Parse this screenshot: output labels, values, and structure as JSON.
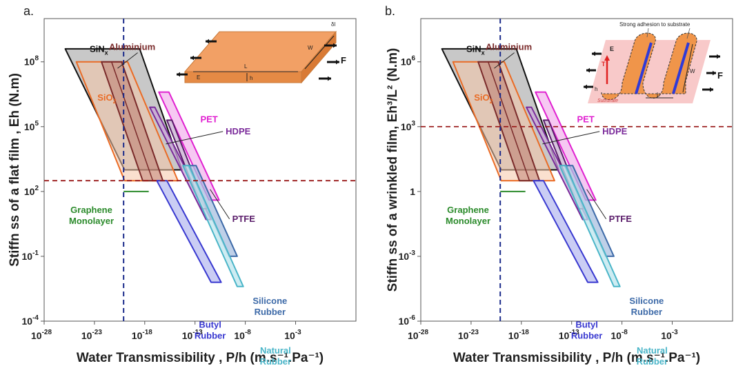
{
  "chart_data": [
    {
      "type": "area",
      "panel_label": "a.",
      "xlabel": "Water Transmissibility , P/h (m.s⁻¹.Pa⁻¹)",
      "ylabel": "Stiffn  ss of a flat film , Eh (N.m)",
      "x_log_range": [
        -28,
        3
      ],
      "y_log_range": [
        -4,
        10
      ],
      "x_ticks": [
        {
          "exp": -28,
          "label": "10"
        },
        {
          "exp": -23,
          "label": "10"
        },
        {
          "exp": -18,
          "label": "10"
        },
        {
          "exp": -13,
          "label": "10"
        },
        {
          "exp": -8,
          "label": "10"
        },
        {
          "exp": -3,
          "label": "10"
        }
      ],
      "x_tick_sups": [
        "-28",
        "-23",
        "-18",
        "-13",
        "-8",
        "-3"
      ],
      "y_ticks": [
        {
          "exp": 8,
          "base": "10",
          "sup": "8"
        },
        {
          "exp": 5,
          "base": "10",
          "sup": "5"
        },
        {
          "exp": 2,
          "base": "10",
          "sup": "2"
        },
        {
          "exp": -1,
          "base": "10",
          "sup": "-1"
        },
        {
          "exp": -4,
          "base": "10",
          "sup": "-4"
        }
      ],
      "reference_lines": {
        "x_exp": -20.1,
        "y_exp": 2.5
      },
      "inset": {
        "labels": [
          "δl",
          "L",
          "W",
          "E",
          "h",
          "F"
        ]
      },
      "materials": [
        {
          "label": "Aluminium",
          "color": "#7a2a2a",
          "polygon": [
            [
              -22.3,
              8.0
            ],
            [
              -20.3,
              8.0
            ],
            [
              -16.2,
              2.5
            ],
            [
              -18.2,
              2.5
            ]
          ]
        },
        {
          "label": "SiN",
          "sub": "x",
          "color": "#111111",
          "polygon": [
            [
              -25.9,
              8.6
            ],
            [
              -18.5,
              8.6
            ],
            [
              -14.3,
              3.0
            ],
            [
              -20.0,
              3.0
            ]
          ]
        },
        {
          "label": "SiO",
          "sub": "2",
          "color": "#ea6b25",
          "polygon": [
            [
              -24.8,
              8.0
            ],
            [
              -19.7,
              8.0
            ],
            [
              -14.7,
              2.5
            ],
            [
              -20.0,
              2.5
            ]
          ]
        },
        {
          "label": "PET",
          "color": "#e020d0",
          "polygon": [
            [
              -16.6,
              6.6
            ],
            [
              -15.6,
              6.6
            ],
            [
              -10.6,
              1.6
            ],
            [
              -11.6,
              1.6
            ]
          ]
        },
        {
          "label": "HDPE",
          "color": "#7a2a9a",
          "polygon": [
            [
              -17.5,
              5.9
            ],
            [
              -17.0,
              5.9
            ],
            [
              -11.4,
              0.7
            ],
            [
              -11.9,
              0.7
            ]
          ]
        },
        {
          "label": "PTFE",
          "color": "#5a1c6a",
          "polygon": [
            [
              -15.8,
              5.3
            ],
            [
              -15.3,
              5.3
            ],
            [
              -11.8,
              1.2
            ],
            [
              -12.3,
              1.2
            ]
          ]
        },
        {
          "label": "Butyl Rubber",
          "color": "#3838d0",
          "polygon": [
            [
              -16.8,
              2.5
            ],
            [
              -15.8,
              2.5
            ],
            [
              -10.4,
              -2.2
            ],
            [
              -11.4,
              -2.2
            ]
          ]
        },
        {
          "label": "Silicone Rubber",
          "color": "#3d6aa8",
          "polygon": [
            [
              -13.7,
              3.2
            ],
            [
              -12.9,
              3.2
            ],
            [
              -8.8,
              -1.0
            ],
            [
              -9.6,
              -1.0
            ]
          ]
        },
        {
          "label": "Natural Rubber",
          "color": "#4ab5c8",
          "polygon": [
            [
              -14.2,
              3.2
            ],
            [
              -13.6,
              3.2
            ],
            [
              -8.2,
              -2.4
            ],
            [
              -8.8,
              -2.4
            ]
          ]
        },
        {
          "label": "Graphene Monolayer",
          "color": "#2a8a2a",
          "segment": [
            [
              -20.1,
              2.0
            ],
            [
              -17.6,
              2.0
            ]
          ]
        }
      ]
    },
    {
      "type": "area",
      "panel_label": "b.",
      "xlabel": "Water Transmissibility , P/h (m.s⁻¹.Pa⁻¹)",
      "ylabel": "Stiffn  ss of a wrinkled film, Eh³/L² (N.m)",
      "x_log_range": [
        -28,
        3
      ],
      "y_log_range": [
        -6,
        8
      ],
      "x_ticks": [
        {
          "exp": -28,
          "label": "10"
        },
        {
          "exp": -23,
          "label": "10"
        },
        {
          "exp": -18,
          "label": "10"
        },
        {
          "exp": -13,
          "label": "10"
        },
        {
          "exp": -8,
          "label": "10"
        },
        {
          "exp": -3,
          "label": "10"
        }
      ],
      "x_tick_sups": [
        "-28",
        "-23",
        "-18",
        "-13",
        "-8",
        "-3"
      ],
      "y_ticks": [
        {
          "exp": 6,
          "base": "10",
          "sup": "6"
        },
        {
          "exp": 3,
          "base": "10",
          "sup": "3"
        },
        {
          "exp": 0,
          "base": "1",
          "sup": ""
        },
        {
          "exp": -3,
          "base": "10",
          "sup": "-3"
        },
        {
          "exp": -6,
          "base": "10",
          "sup": "-6"
        }
      ],
      "reference_lines": {
        "x_exp": -20.1,
        "y_exp": 3.0
      },
      "inset": {
        "labels": [
          "Strong adhesion to substrate",
          "E",
          "T",
          "h",
          "L",
          "W",
          "F",
          "Substrate"
        ]
      },
      "materials": [
        {
          "label": "Aluminium",
          "color": "#7a2a2a",
          "polygon": [
            [
              -22.3,
              6.0
            ],
            [
              -20.3,
              6.0
            ],
            [
              -16.2,
              0.5
            ],
            [
              -18.2,
              0.5
            ]
          ]
        },
        {
          "label": "SiN",
          "sub": "x",
          "color": "#111111",
          "polygon": [
            [
              -25.9,
              6.6
            ],
            [
              -18.5,
              6.6
            ],
            [
              -14.3,
              1.0
            ],
            [
              -20.0,
              1.0
            ]
          ]
        },
        {
          "label": "SiO",
          "sub": "2",
          "color": "#ea6b25",
          "polygon": [
            [
              -24.8,
              6.0
            ],
            [
              -19.7,
              6.0
            ],
            [
              -14.7,
              0.5
            ],
            [
              -20.0,
              0.5
            ]
          ]
        },
        {
          "label": "PET",
          "color": "#e020d0",
          "polygon": [
            [
              -16.6,
              4.6
            ],
            [
              -15.6,
              4.6
            ],
            [
              -10.6,
              -0.4
            ],
            [
              -11.6,
              -0.4
            ]
          ]
        },
        {
          "label": "HDPE",
          "color": "#7a2a9a",
          "polygon": [
            [
              -17.5,
              3.9
            ],
            [
              -17.0,
              3.9
            ],
            [
              -11.4,
              -1.3
            ],
            [
              -11.9,
              -1.3
            ]
          ]
        },
        {
          "label": "PTFE",
          "color": "#5a1c6a",
          "polygon": [
            [
              -15.8,
              3.3
            ],
            [
              -15.3,
              3.3
            ],
            [
              -11.8,
              -0.8
            ],
            [
              -12.3,
              -0.8
            ]
          ]
        },
        {
          "label": "Butyl Rubber",
          "color": "#3838d0",
          "polygon": [
            [
              -16.8,
              0.5
            ],
            [
              -15.8,
              0.5
            ],
            [
              -10.4,
              -4.2
            ],
            [
              -11.4,
              -4.2
            ]
          ]
        },
        {
          "label": "Silicone Rubber",
          "color": "#3d6aa8",
          "polygon": [
            [
              -13.7,
              1.2
            ],
            [
              -12.9,
              1.2
            ],
            [
              -8.8,
              -3.0
            ],
            [
              -9.6,
              -3.0
            ]
          ]
        },
        {
          "label": "Natural Rubber",
          "color": "#4ab5c8",
          "polygon": [
            [
              -14.2,
              1.2
            ],
            [
              -13.6,
              1.2
            ],
            [
              -8.2,
              -4.4
            ],
            [
              -8.8,
              -4.4
            ]
          ]
        },
        {
          "label": "Graphene Monolayer",
          "color": "#2a8a2a",
          "segment": [
            [
              -20.1,
              0.0
            ],
            [
              -17.6,
              0.0
            ]
          ]
        }
      ]
    }
  ]
}
